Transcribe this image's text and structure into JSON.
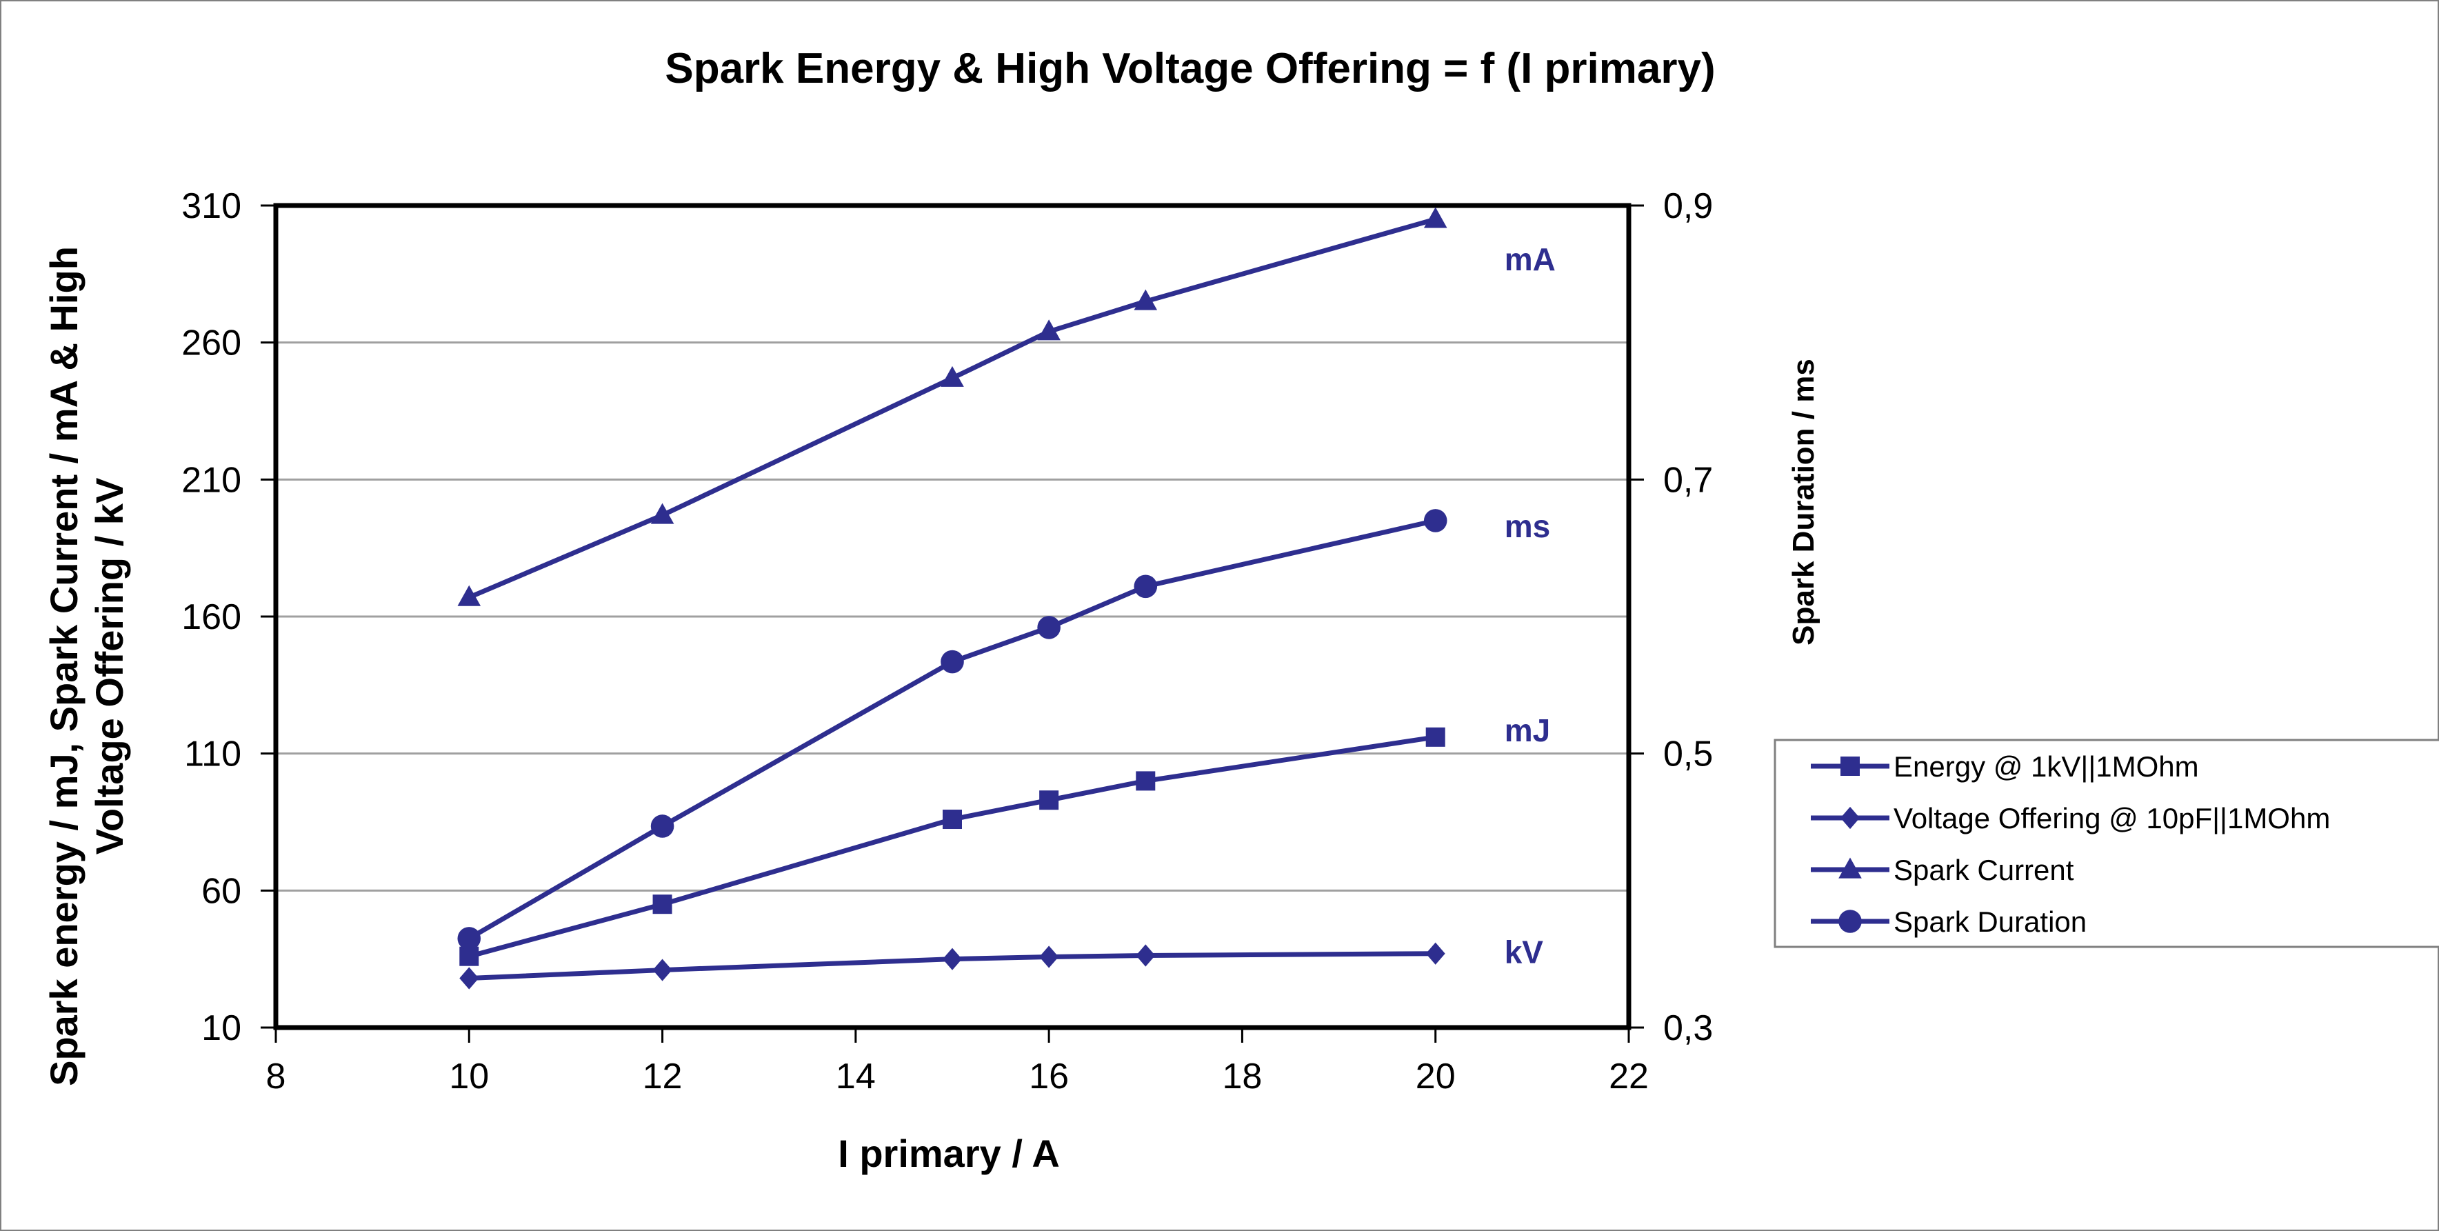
{
  "chart_data": {
    "type": "line",
    "title": "Spark Energy & High Voltage Offering = f (I primary)",
    "xlabel": "I primary / A",
    "ylabel_lines": [
      "Spark energy / mJ, Spark Current / mA & High",
      "Voltage Offering / kV"
    ],
    "y2label": "Spark Duration / ms",
    "xlim": [
      8,
      22
    ],
    "ylim": [
      10,
      310
    ],
    "y2lim": [
      0.3,
      0.9
    ],
    "x_ticks": [
      "8",
      "10",
      "12",
      "14",
      "16",
      "18",
      "20",
      "22"
    ],
    "y_ticks": [
      "10",
      "60",
      "110",
      "160",
      "210",
      "260",
      "310"
    ],
    "y2_ticks": [
      "0,3",
      "0,5",
      "0,7",
      "0,9"
    ],
    "grid": "horizontal",
    "legend_position": "right",
    "series": [
      {
        "name": "Energy @ 1kV||1MOhm",
        "marker": "square",
        "axis": "left",
        "label": "mJ",
        "x": [
          10,
          12,
          15,
          16,
          17,
          20
        ],
        "values": [
          36,
          55,
          86,
          93,
          100,
          116
        ]
      },
      {
        "name": "Voltage Offering @ 10pF||1MOhm",
        "marker": "diamond",
        "axis": "left",
        "label": "kV",
        "x": [
          10,
          12,
          15,
          16,
          17,
          20
        ],
        "values": [
          28,
          31,
          35,
          35.8,
          36.3,
          37
        ]
      },
      {
        "name": "Spark Current",
        "marker": "triangle",
        "axis": "left",
        "label": "mA",
        "x": [
          10,
          12,
          15,
          16,
          17,
          20
        ],
        "values": [
          167,
          197,
          247,
          264,
          275,
          305
        ]
      },
      {
        "name": "Spark Duration",
        "marker": "circle",
        "axis": "right",
        "label": "ms",
        "x": [
          10,
          12,
          15,
          16,
          17,
          20
        ],
        "values": [
          0.365,
          0.447,
          0.567,
          0.592,
          0.622,
          0.67
        ]
      }
    ],
    "colors": {
      "series": "#2E2E8F",
      "grid": "#a0a0a0",
      "axis": "#000000"
    }
  }
}
